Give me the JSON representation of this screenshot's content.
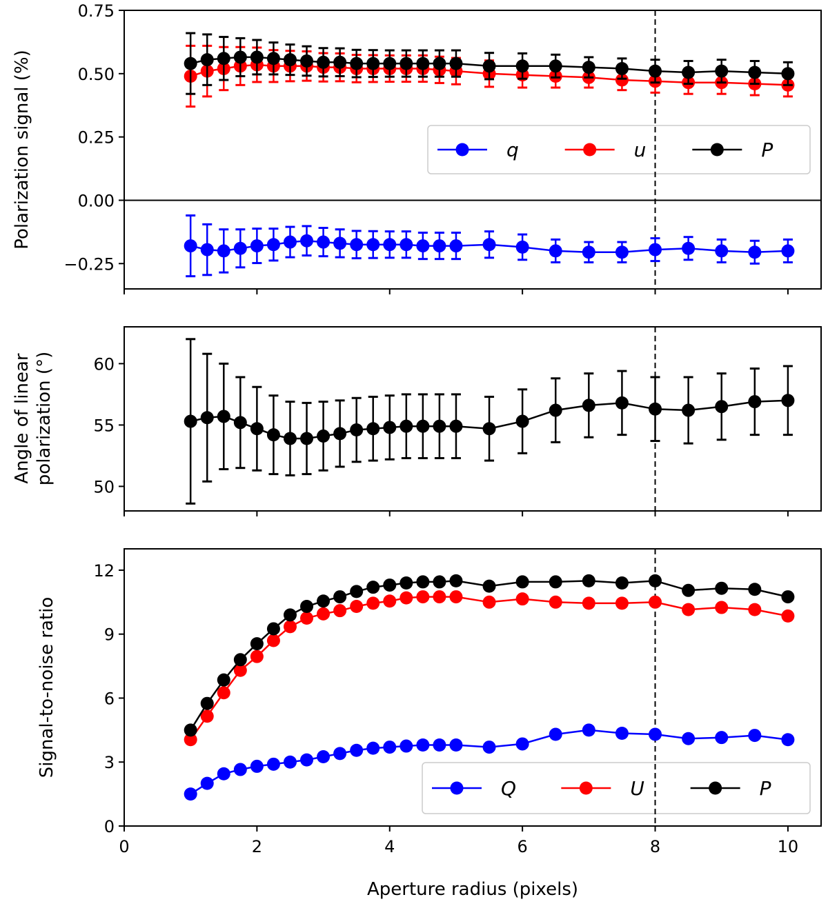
{
  "chart_data": [
    {
      "type": "line",
      "panel": "polarization-signal",
      "ylabel": "Polarization signal (%)",
      "xlabel": "",
      "xlim": [
        0,
        10.5
      ],
      "ylim": [
        -0.35,
        0.75
      ],
      "yticks": [
        -0.25,
        0.0,
        0.25,
        0.5,
        0.75
      ],
      "ytick_labels": [
        "−0.25",
        "0.00",
        "0.25",
        "0.50",
        "0.75"
      ],
      "xticks": [
        0,
        2,
        4,
        6,
        8,
        10
      ],
      "zero_line": true,
      "vline_x": 8,
      "legend_position": "right, above zero line",
      "x": [
        1.0,
        1.25,
        1.5,
        1.75,
        2.0,
        2.25,
        2.5,
        2.75,
        3.0,
        3.25,
        3.5,
        3.75,
        4.0,
        4.25,
        4.5,
        4.75,
        5.0,
        5.5,
        6.0,
        6.5,
        7.0,
        7.5,
        8.0,
        8.5,
        9.0,
        9.5,
        10.0
      ],
      "series": [
        {
          "name": "q",
          "color": "#0000ff",
          "values": [
            -0.18,
            -0.195,
            -0.2,
            -0.19,
            -0.18,
            -0.175,
            -0.165,
            -0.16,
            -0.165,
            -0.17,
            -0.175,
            -0.175,
            -0.175,
            -0.175,
            -0.18,
            -0.18,
            -0.18,
            -0.175,
            -0.185,
            -0.2,
            -0.205,
            -0.205,
            -0.195,
            -0.19,
            -0.2,
            -0.205,
            -0.2
          ],
          "errors": [
            0.12,
            0.1,
            0.085,
            0.075,
            0.068,
            0.063,
            0.06,
            0.058,
            0.056,
            0.055,
            0.054,
            0.053,
            0.052,
            0.052,
            0.052,
            0.052,
            0.052,
            0.052,
            0.05,
            0.045,
            0.04,
            0.04,
            0.045,
            0.045,
            0.045,
            0.045,
            0.045
          ]
        },
        {
          "name": "u",
          "color": "#ff0000",
          "values": [
            0.49,
            0.51,
            0.52,
            0.53,
            0.535,
            0.53,
            0.53,
            0.53,
            0.525,
            0.525,
            0.52,
            0.52,
            0.52,
            0.52,
            0.52,
            0.515,
            0.51,
            0.5,
            0.495,
            0.49,
            0.485,
            0.475,
            0.47,
            0.465,
            0.465,
            0.46,
            0.455
          ],
          "errors": [
            0.12,
            0.1,
            0.085,
            0.075,
            0.068,
            0.063,
            0.06,
            0.058,
            0.056,
            0.055,
            0.054,
            0.053,
            0.052,
            0.052,
            0.052,
            0.052,
            0.052,
            0.052,
            0.05,
            0.045,
            0.04,
            0.04,
            0.045,
            0.045,
            0.045,
            0.045,
            0.045
          ]
        },
        {
          "name": "P",
          "color": "#000000",
          "values": [
            0.54,
            0.555,
            0.56,
            0.565,
            0.565,
            0.56,
            0.555,
            0.55,
            0.545,
            0.545,
            0.54,
            0.54,
            0.54,
            0.54,
            0.54,
            0.54,
            0.54,
            0.53,
            0.53,
            0.53,
            0.525,
            0.52,
            0.51,
            0.505,
            0.51,
            0.505,
            0.5
          ],
          "errors": [
            0.12,
            0.1,
            0.085,
            0.075,
            0.068,
            0.063,
            0.06,
            0.058,
            0.056,
            0.055,
            0.054,
            0.053,
            0.052,
            0.052,
            0.052,
            0.052,
            0.052,
            0.052,
            0.05,
            0.045,
            0.04,
            0.04,
            0.045,
            0.045,
            0.045,
            0.045,
            0.045
          ]
        }
      ]
    },
    {
      "type": "line",
      "panel": "angle-of-polarization",
      "ylabel": "Angle of linear polarization (°)",
      "ylabel_lines": [
        "Angle of linear",
        "polarization (°)"
      ],
      "xlabel": "",
      "xlim": [
        0,
        10.5
      ],
      "ylim": [
        48,
        63
      ],
      "yticks": [
        50,
        55,
        60
      ],
      "ytick_labels": [
        "50",
        "55",
        "60"
      ],
      "xticks": [
        0,
        2,
        4,
        6,
        8,
        10
      ],
      "vline_x": 8,
      "x": [
        1.0,
        1.25,
        1.5,
        1.75,
        2.0,
        2.25,
        2.5,
        2.75,
        3.0,
        3.25,
        3.5,
        3.75,
        4.0,
        4.25,
        4.5,
        4.75,
        5.0,
        5.5,
        6.0,
        6.5,
        7.0,
        7.5,
        8.0,
        8.5,
        9.0,
        9.5,
        10.0
      ],
      "series": [
        {
          "name": "angle",
          "color": "#000000",
          "values": [
            55.3,
            55.6,
            55.7,
            55.2,
            54.7,
            54.2,
            53.9,
            53.9,
            54.1,
            54.3,
            54.6,
            54.7,
            54.8,
            54.9,
            54.9,
            54.9,
            54.9,
            54.7,
            55.3,
            56.2,
            56.6,
            56.8,
            56.3,
            56.2,
            56.5,
            56.9,
            57.0
          ],
          "errors": [
            6.7,
            5.2,
            4.3,
            3.7,
            3.4,
            3.2,
            3.0,
            2.9,
            2.8,
            2.7,
            2.6,
            2.6,
            2.6,
            2.6,
            2.6,
            2.6,
            2.6,
            2.6,
            2.6,
            2.6,
            2.6,
            2.6,
            2.6,
            2.7,
            2.7,
            2.7,
            2.8
          ]
        }
      ]
    },
    {
      "type": "line",
      "panel": "signal-to-noise",
      "ylabel": "Signal-to-noise ratio",
      "xlabel": "Aperture radius (pixels)",
      "xlim": [
        0,
        10.5
      ],
      "ylim": [
        0,
        13
      ],
      "yticks": [
        0,
        3,
        6,
        9,
        12
      ],
      "ytick_labels": [
        "0",
        "3",
        "6",
        "9",
        "12"
      ],
      "xticks": [
        0,
        2,
        4,
        6,
        8,
        10
      ],
      "xtick_labels": [
        "0",
        "2",
        "4",
        "6",
        "8",
        "10"
      ],
      "vline_x": 8,
      "legend_position": "lower right",
      "x": [
        1.0,
        1.25,
        1.5,
        1.75,
        2.0,
        2.25,
        2.5,
        2.75,
        3.0,
        3.25,
        3.5,
        3.75,
        4.0,
        4.25,
        4.5,
        4.75,
        5.0,
        5.5,
        6.0,
        6.5,
        7.0,
        7.5,
        8.0,
        8.5,
        9.0,
        9.5,
        10.0
      ],
      "series": [
        {
          "name": "Q",
          "color": "#0000ff",
          "values": [
            1.5,
            2.0,
            2.45,
            2.65,
            2.8,
            2.9,
            3.0,
            3.1,
            3.25,
            3.4,
            3.55,
            3.65,
            3.7,
            3.75,
            3.8,
            3.8,
            3.8,
            3.7,
            3.85,
            4.3,
            4.5,
            4.35,
            4.3,
            4.1,
            4.15,
            4.25,
            4.05
          ]
        },
        {
          "name": "U",
          "color": "#ff0000",
          "values": [
            4.05,
            5.15,
            6.25,
            7.3,
            7.95,
            8.7,
            9.35,
            9.75,
            9.95,
            10.1,
            10.3,
            10.45,
            10.55,
            10.7,
            10.75,
            10.75,
            10.75,
            10.5,
            10.65,
            10.5,
            10.45,
            10.45,
            10.5,
            10.15,
            10.25,
            10.15,
            9.85
          ]
        },
        {
          "name": "P",
          "color": "#000000",
          "values": [
            4.5,
            5.75,
            6.85,
            7.8,
            8.55,
            9.25,
            9.9,
            10.3,
            10.55,
            10.75,
            11.0,
            11.2,
            11.3,
            11.4,
            11.45,
            11.45,
            11.5,
            11.25,
            11.45,
            11.45,
            11.5,
            11.4,
            11.5,
            11.05,
            11.15,
            11.1,
            10.75
          ]
        }
      ]
    }
  ]
}
